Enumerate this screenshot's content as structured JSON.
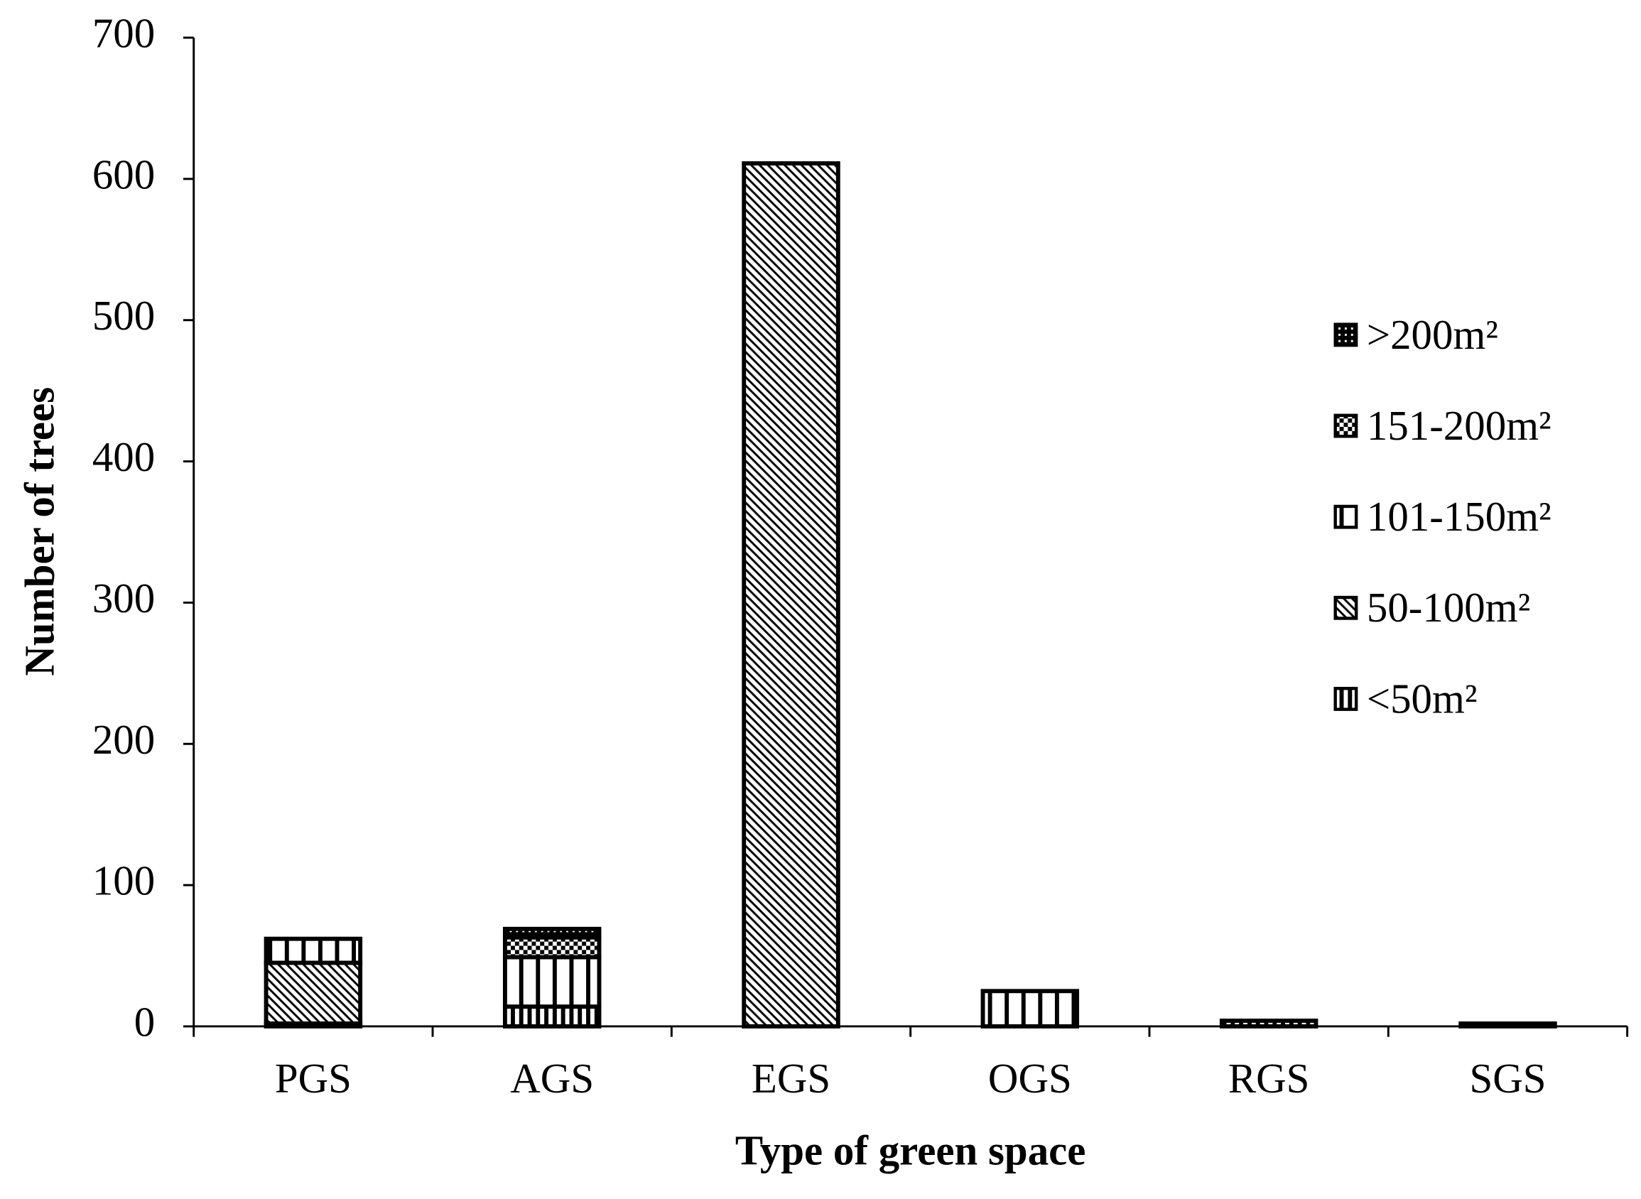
{
  "chart_data": {
    "type": "stacked_bar",
    "x_label": "Type of green space",
    "y_label": "Number of trees",
    "categories": [
      "PGS",
      "AGS",
      "EGS",
      "OGS",
      "RGS",
      "SGS"
    ],
    "series": [
      {
        "name": "<50m²",
        "color": "#000000",
        "values": [
          2,
          14,
          0,
          0,
          4,
          2
        ]
      },
      {
        "name": "50-100m²",
        "color": "#000000",
        "values": [
          43,
          0,
          611,
          0,
          0,
          0
        ]
      },
      {
        "name": "101-150m²",
        "color": "#000000",
        "values": [
          17,
          35,
          0,
          25,
          0,
          0
        ]
      },
      {
        "name": "151-200m²",
        "color": "#000000",
        "values": [
          0,
          14,
          0,
          0,
          0,
          0
        ]
      },
      {
        "name": ">200m²",
        "color": "#000000",
        "values": [
          0,
          6,
          0,
          0,
          0,
          0
        ]
      }
    ],
    "ylim": [
      0,
      700
    ],
    "yticks": [
      0,
      100,
      200,
      300,
      400,
      500,
      600,
      700
    ],
    "grid": false,
    "legend": "right"
  }
}
